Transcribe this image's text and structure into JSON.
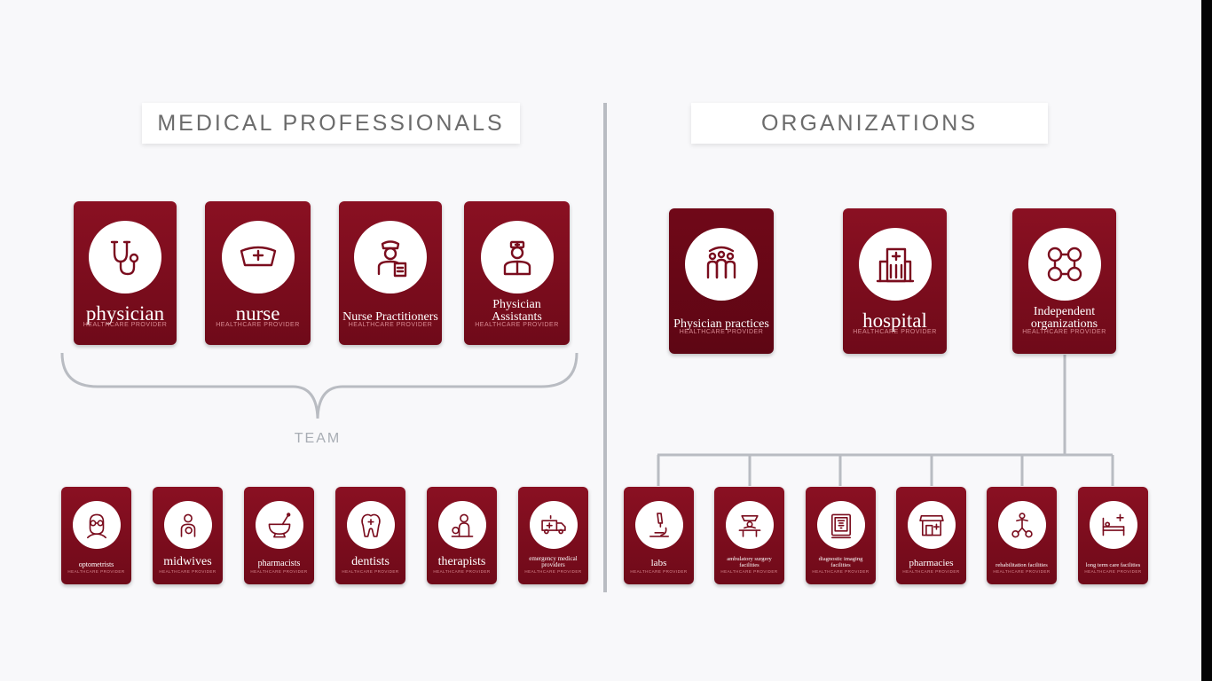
{
  "left": {
    "title": "MEDICAL PROFESSIONALS",
    "team_label": "TEAM",
    "top": [
      {
        "label": "physician",
        "sub": "HEALTHCARE PROVIDER",
        "icon": "stethoscope-icon"
      },
      {
        "label": "nurse",
        "sub": "HEALTHCARE PROVIDER",
        "icon": "nurse-cap-icon"
      },
      {
        "label": "Nurse Practitioners",
        "sub": "HEALTHCARE PROVIDER",
        "icon": "nurse-practitioner-icon"
      },
      {
        "label": "Physician Assistants",
        "sub": "HEALTHCARE PROVIDER",
        "icon": "physician-assistant-icon"
      }
    ],
    "bottom": [
      {
        "label": "optometrists",
        "sub": "HEALTHCARE PROVIDER",
        "icon": "optometrist-icon"
      },
      {
        "label": "midwives",
        "sub": "HEALTHCARE PROVIDER",
        "icon": "midwife-icon"
      },
      {
        "label": "pharmacists",
        "sub": "HEALTHCARE PROVIDER",
        "icon": "mortar-pestle-icon"
      },
      {
        "label": "dentists",
        "sub": "HEALTHCARE PROVIDER",
        "icon": "tooth-icon"
      },
      {
        "label": "therapists",
        "sub": "HEALTHCARE PROVIDER",
        "icon": "therapist-icon"
      },
      {
        "label": "emergency medical providers",
        "sub": "HEALTHCARE PROVIDER",
        "icon": "ambulance-icon"
      }
    ]
  },
  "right": {
    "title": "ORGANIZATIONS",
    "top": [
      {
        "label": "Physician practices",
        "sub": "HEALTHCARE PROVIDER",
        "icon": "people-group-icon"
      },
      {
        "label": "hospital",
        "sub": "HEALTHCARE PROVIDER",
        "icon": "hospital-building-icon"
      },
      {
        "label": "Independent organizations",
        "sub": "HEALTHCARE PROVIDER",
        "icon": "network-people-icon"
      }
    ],
    "bottom": [
      {
        "label": "labs",
        "sub": "HEALTHCARE PROVIDER",
        "icon": "microscope-icon"
      },
      {
        "label": "ambulatory surgery facilities",
        "sub": "HEALTHCARE PROVIDER",
        "icon": "surgery-icon"
      },
      {
        "label": "diagnostic imaging facilities",
        "sub": "HEALTHCARE PROVIDER",
        "icon": "imaging-icon"
      },
      {
        "label": "pharmacies",
        "sub": "HEALTHCARE PROVIDER",
        "icon": "pharmacy-store-icon"
      },
      {
        "label": "rehabilitation facilities",
        "sub": "HEALTHCARE PROVIDER",
        "icon": "rehabilitation-icon"
      },
      {
        "label": "long term care facilities",
        "sub": "HEALTHCARE PROVIDER",
        "icon": "hospital-bed-icon"
      }
    ]
  },
  "colors": {
    "card": "#7a0d1e",
    "line": "#b9bcc2",
    "title_text": "#6b6b6b"
  }
}
